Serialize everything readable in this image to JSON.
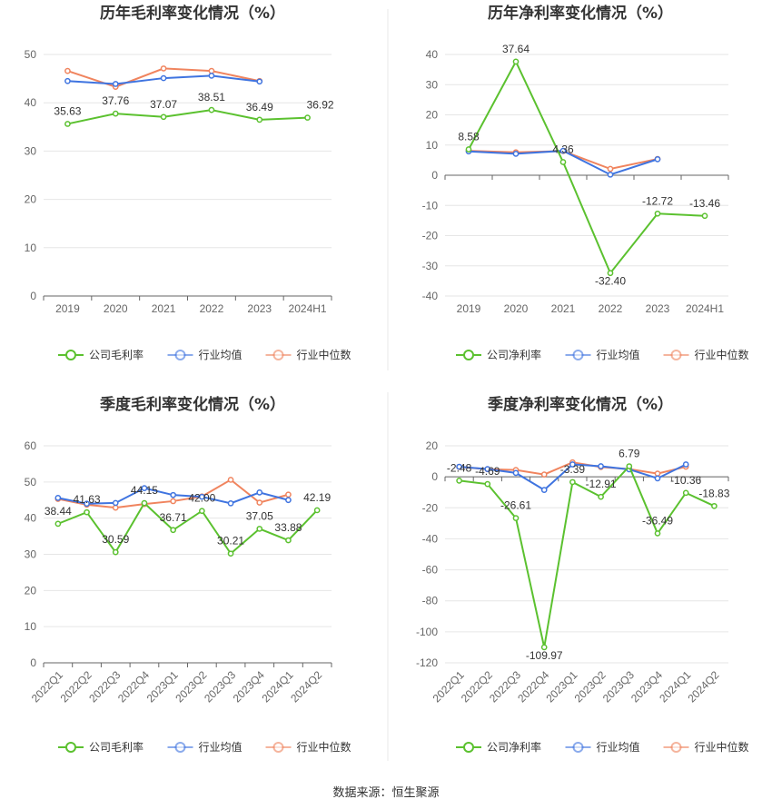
{
  "footer": {
    "source_text": "数据来源：恒生聚源"
  },
  "colors": {
    "company": "#5bc12f",
    "industry_avg": "#3f74e0",
    "industry_median": "#f0845e"
  },
  "chart_data": [
    {
      "type": "line",
      "title": "历年毛利率变化情况（%）",
      "categories": [
        "2019",
        "2020",
        "2021",
        "2022",
        "2023",
        "2024H1"
      ],
      "ylim": [
        0,
        50
      ],
      "yticks": [
        0,
        10,
        20,
        30,
        40,
        50
      ],
      "grid": true,
      "legend_position": "bottom",
      "series": [
        {
          "name": "公司毛利率",
          "values": [
            35.63,
            37.76,
            37.07,
            38.51,
            36.49,
            36.92
          ],
          "labels": [
            "35.63",
            "37.76",
            "37.07",
            "38.51",
            "36.49",
            "36.92"
          ]
        },
        {
          "name": "行业均值",
          "values": [
            44.5,
            43.9,
            45.1,
            45.6,
            44.4,
            null
          ]
        },
        {
          "name": "行业中位数",
          "values": [
            46.6,
            43.3,
            47.1,
            46.6,
            44.5,
            null
          ]
        }
      ]
    },
    {
      "type": "line",
      "title": "历年净利率变化情况（%）",
      "categories": [
        "2019",
        "2020",
        "2021",
        "2022",
        "2023",
        "2024H1"
      ],
      "ylim": [
        -40,
        40
      ],
      "yticks": [
        -40,
        -30,
        -20,
        -10,
        0,
        10,
        20,
        30,
        40
      ],
      "grid": true,
      "legend_position": "bottom",
      "series": [
        {
          "name": "公司净利率",
          "values": [
            8.58,
            37.64,
            4.36,
            -32.4,
            -12.72,
            -13.46
          ],
          "labels": [
            "8.58",
            "37.64",
            "4.36",
            "-32.40",
            "-12.72",
            "-13.46"
          ]
        },
        {
          "name": "行业均值",
          "values": [
            7.9,
            7.1,
            8.1,
            0.2,
            5.3,
            null
          ]
        },
        {
          "name": "行业中位数",
          "values": [
            8.1,
            7.6,
            8.0,
            2.1,
            5.4,
            null
          ]
        }
      ]
    },
    {
      "type": "line",
      "title": "季度毛利率变化情况（%）",
      "categories": [
        "2022Q1",
        "2022Q2",
        "2022Q3",
        "2022Q4",
        "2023Q1",
        "2023Q2",
        "2023Q3",
        "2023Q4",
        "2024Q1",
        "2024Q2"
      ],
      "ylim": [
        0,
        60
      ],
      "yticks": [
        0,
        10,
        20,
        30,
        40,
        50,
        60
      ],
      "grid": true,
      "legend_position": "bottom",
      "series": [
        {
          "name": "公司毛利率",
          "values": [
            38.44,
            41.63,
            30.59,
            44.15,
            36.71,
            42.0,
            30.21,
            37.05,
            33.88,
            42.19
          ],
          "labels": [
            "38.44",
            "41.63",
            "30.59",
            "44.15",
            "36.71",
            "42.00",
            "30.21",
            "37.05",
            "33.88",
            "42.19"
          ]
        },
        {
          "name": "行业均值",
          "values": [
            45.6,
            44.0,
            44.2,
            48.3,
            46.4,
            45.9,
            44.1,
            47.1,
            45.0,
            null
          ]
        },
        {
          "name": "行业中位数",
          "values": [
            45.3,
            43.7,
            42.9,
            43.9,
            44.7,
            46.0,
            50.6,
            44.3,
            46.5,
            null
          ]
        }
      ]
    },
    {
      "type": "line",
      "title": "季度净利率变化情况（%）",
      "categories": [
        "2022Q1",
        "2022Q2",
        "2022Q3",
        "2022Q4",
        "2023Q1",
        "2023Q2",
        "2023Q3",
        "2023Q4",
        "2024Q1",
        "2024Q2"
      ],
      "ylim": [
        -120,
        20
      ],
      "yticks": [
        -120,
        -100,
        -80,
        -60,
        -40,
        -20,
        0,
        20
      ],
      "grid": true,
      "legend_position": "bottom",
      "series": [
        {
          "name": "公司净利率",
          "values": [
            -2.48,
            -4.69,
            -26.61,
            -109.97,
            -3.39,
            -12.91,
            6.79,
            -36.49,
            -10.36,
            -18.83
          ],
          "labels": [
            "-2.48",
            "-4.69",
            "-26.61",
            "-109.97",
            "-3.39",
            "-12.91",
            "6.79",
            "-36.49",
            "-10.36",
            "-18.83"
          ]
        },
        {
          "name": "行业均值",
          "values": [
            6.5,
            5.0,
            2.5,
            -8.5,
            8.0,
            6.8,
            4.8,
            -1.0,
            8.0,
            null
          ]
        },
        {
          "name": "行业中位数",
          "values": [
            6.4,
            4.9,
            4.4,
            1.5,
            9.3,
            6.3,
            5.0,
            2.1,
            6.5,
            null
          ]
        }
      ]
    }
  ]
}
